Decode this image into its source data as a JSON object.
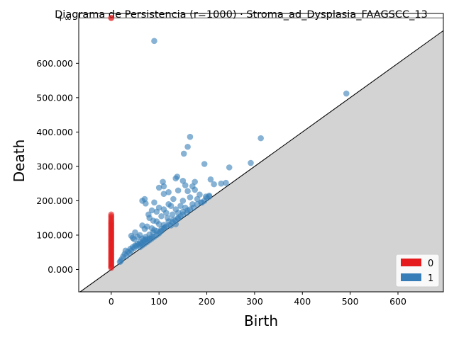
{
  "chart_data": {
    "type": "scatter",
    "title": "Diagrama de Persistencia (r=1000) · Stroma_ad_Dysplasia_FAAGSCC_13",
    "xlabel": "Birth",
    "ylabel": "Death",
    "xlim": [
      -68,
      695
    ],
    "ylim": [
      -65,
      745
    ],
    "x_ticks": [
      {
        "value": 0,
        "label": "0"
      },
      {
        "value": 100,
        "label": "100"
      },
      {
        "value": 200,
        "label": "200"
      },
      {
        "value": 300,
        "label": "300"
      },
      {
        "value": 400,
        "label": "400"
      },
      {
        "value": 500,
        "label": "500"
      },
      {
        "value": 600,
        "label": "600"
      }
    ],
    "y_ticks": [
      {
        "value": 0,
        "label": "0.000"
      },
      {
        "value": 100,
        "label": "100.000"
      },
      {
        "value": 200,
        "label": "200.000"
      },
      {
        "value": 300,
        "label": "300.000"
      },
      {
        "value": 400,
        "label": "400.000"
      },
      {
        "value": 500,
        "label": "500.000"
      },
      {
        "value": 600,
        "label": "600.000"
      }
    ],
    "infinity": {
      "value": 732,
      "label": "+∞"
    },
    "grid": false,
    "diagonal": true,
    "legend_position": "bottom-right",
    "series": [
      {
        "name": "0",
        "color": "#e41a1c",
        "points": [
          [
            0,
            160
          ],
          [
            0,
            155
          ],
          [
            0,
            150
          ],
          [
            0,
            145
          ],
          [
            0,
            140
          ],
          [
            0,
            136
          ],
          [
            0,
            132
          ],
          [
            0,
            128
          ],
          [
            0,
            124
          ],
          [
            0,
            120
          ],
          [
            0,
            116
          ],
          [
            0,
            112
          ],
          [
            0,
            108
          ],
          [
            0,
            104
          ],
          [
            0,
            100
          ],
          [
            0,
            96
          ],
          [
            0,
            92
          ],
          [
            0,
            88
          ],
          [
            0,
            84
          ],
          [
            0,
            80
          ],
          [
            0,
            76
          ],
          [
            0,
            72
          ],
          [
            0,
            68
          ],
          [
            0,
            64
          ],
          [
            0,
            60
          ],
          [
            0,
            56
          ],
          [
            0,
            52
          ],
          [
            0,
            48
          ],
          [
            0,
            44
          ],
          [
            0,
            40
          ],
          [
            0,
            36
          ],
          [
            0,
            32
          ],
          [
            0,
            28
          ],
          [
            0,
            24
          ],
          [
            0,
            20
          ],
          [
            0,
            16
          ],
          [
            0,
            12
          ],
          [
            0,
            8
          ],
          [
            0,
            5
          ]
        ],
        "infinite_points": [
          [
            0,
            "inf"
          ]
        ]
      },
      {
        "name": "1",
        "color": "#377eb8",
        "points": [
          [
            90,
            665
          ],
          [
            492,
            512
          ],
          [
            313,
            382
          ],
          [
            165,
            386
          ],
          [
            160,
            357
          ],
          [
            152,
            337
          ],
          [
            195,
            307
          ],
          [
            292,
            310
          ],
          [
            247,
            297
          ],
          [
            138,
            270
          ],
          [
            135,
            265
          ],
          [
            108,
            255
          ],
          [
            150,
            258
          ],
          [
            175,
            255
          ],
          [
            100,
            238
          ],
          [
            110,
            242
          ],
          [
            155,
            245
          ],
          [
            170,
            242
          ],
          [
            208,
            262
          ],
          [
            215,
            248
          ],
          [
            230,
            250
          ],
          [
            240,
            252
          ],
          [
            110,
            220
          ],
          [
            120,
            225
          ],
          [
            140,
            230
          ],
          [
            160,
            228
          ],
          [
            175,
            232
          ],
          [
            185,
            218
          ],
          [
            198,
            212
          ],
          [
            205,
            215
          ],
          [
            70,
            205
          ],
          [
            65,
            200
          ],
          [
            72,
            192
          ],
          [
            90,
            195
          ],
          [
            120,
            190
          ],
          [
            130,
            205
          ],
          [
            150,
            200
          ],
          [
            165,
            210
          ],
          [
            180,
            205
          ],
          [
            190,
            195
          ],
          [
            100,
            180
          ],
          [
            110,
            175
          ],
          [
            85,
            172
          ],
          [
            95,
            168
          ],
          [
            115,
            165
          ],
          [
            125,
            185
          ],
          [
            145,
            185
          ],
          [
            155,
            180
          ],
          [
            170,
            190
          ],
          [
            135,
            175
          ],
          [
            78,
            160
          ],
          [
            80,
            150
          ],
          [
            88,
            142
          ],
          [
            105,
            155
          ],
          [
            118,
            150
          ],
          [
            128,
            160
          ],
          [
            140,
            165
          ],
          [
            150,
            168
          ],
          [
            160,
            172
          ],
          [
            95,
            140
          ],
          [
            100,
            132
          ],
          [
            110,
            130
          ],
          [
            120,
            140
          ],
          [
            130,
            145
          ],
          [
            140,
            148
          ],
          [
            65,
            128
          ],
          [
            70,
            118
          ],
          [
            75,
            125
          ],
          [
            85,
            120
          ],
          [
            90,
            115
          ],
          [
            105,
            118
          ],
          [
            112,
            122
          ],
          [
            125,
            128
          ],
          [
            135,
            132
          ],
          [
            50,
            108
          ],
          [
            42,
            98
          ],
          [
            45,
            92
          ],
          [
            48,
            88
          ],
          [
            55,
            95
          ],
          [
            60,
            100
          ],
          [
            65,
            90
          ],
          [
            72,
            95
          ],
          [
            80,
            102
          ],
          [
            88,
            108
          ],
          [
            95,
            112
          ],
          [
            102,
            110
          ],
          [
            30,
            55
          ],
          [
            35,
            52
          ],
          [
            28,
            45
          ],
          [
            32,
            40
          ],
          [
            40,
            60
          ],
          [
            45,
            65
          ],
          [
            50,
            70
          ],
          [
            55,
            75
          ],
          [
            60,
            80
          ],
          [
            65,
            78
          ],
          [
            70,
            82
          ],
          [
            75,
            88
          ],
          [
            80,
            90
          ],
          [
            85,
            95
          ],
          [
            25,
            38
          ],
          [
            22,
            30
          ],
          [
            20,
            25
          ],
          [
            18,
            22
          ],
          [
            38,
            48
          ],
          [
            42,
            55
          ],
          [
            48,
            62
          ],
          [
            52,
            68
          ],
          [
            58,
            72
          ],
          [
            62,
            75
          ],
          [
            68,
            85
          ],
          [
            72,
            88
          ],
          [
            145,
            155
          ],
          [
            150,
            160
          ],
          [
            158,
            165
          ],
          [
            165,
            175
          ],
          [
            172,
            180
          ],
          [
            180,
            190
          ],
          [
            188,
            195
          ],
          [
            195,
            200
          ],
          [
            200,
            208
          ],
          [
            205,
            212
          ],
          [
            110,
            120
          ],
          [
            115,
            125
          ],
          [
            122,
            130
          ],
          [
            128,
            138
          ],
          [
            134,
            142
          ],
          [
            140,
            150
          ],
          [
            60,
            65
          ],
          [
            65,
            70
          ],
          [
            70,
            75
          ],
          [
            75,
            80
          ],
          [
            80,
            85
          ],
          [
            85,
            90
          ],
          [
            90,
            95
          ],
          [
            95,
            100
          ],
          [
            100,
            105
          ],
          [
            105,
            112
          ]
        ]
      }
    ]
  }
}
